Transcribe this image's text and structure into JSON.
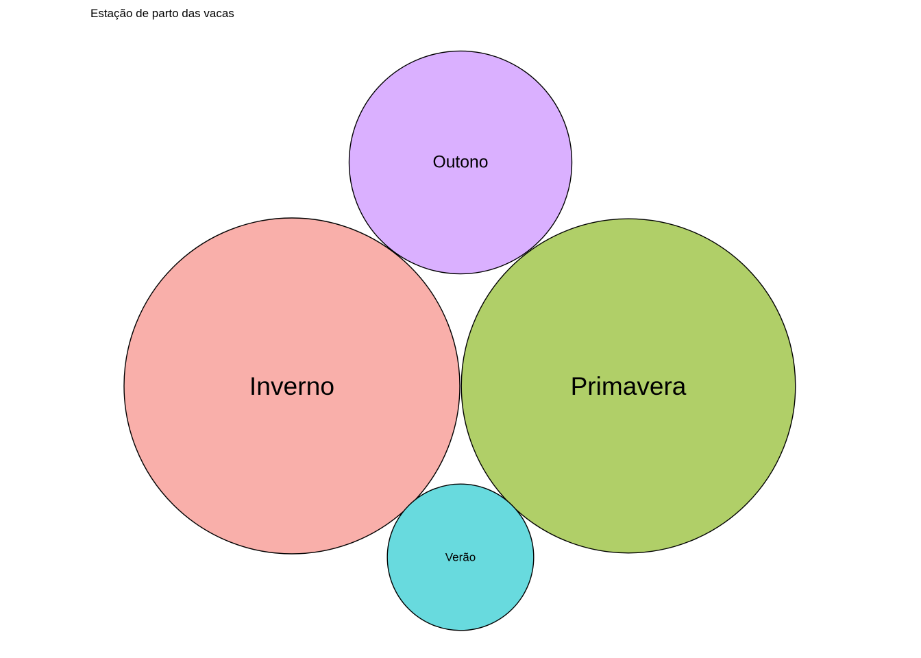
{
  "chart_data": {
    "type": "bubble",
    "title": "Estação de parto das vacas",
    "legend": "none",
    "grid": false,
    "bubbles": [
      {
        "label": "Outono",
        "color": "#DAB0FF",
        "relative_size": 0.44
      },
      {
        "label": "Inverno",
        "color": "#F9AFAA",
        "relative_size": 1.0
      },
      {
        "label": "Primavera",
        "color": "#B0CF68",
        "relative_size": 0.99
      },
      {
        "label": "Verão",
        "color": "#68DADE",
        "relative_size": 0.19
      }
    ]
  }
}
